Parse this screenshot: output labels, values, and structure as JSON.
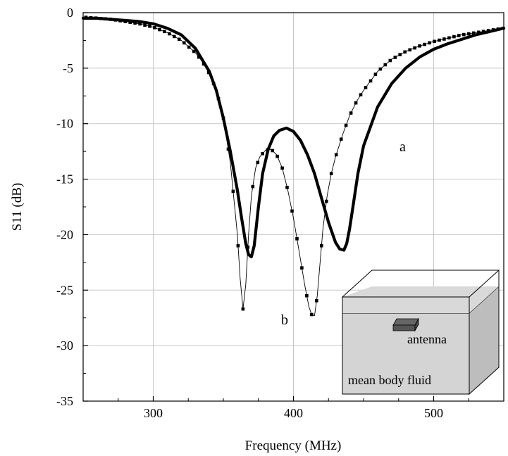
{
  "chart_data": {
    "type": "line",
    "xlabel": "Frequency (MHz)",
    "ylabel": "S11 (dB)",
    "xlim": [
      250,
      550
    ],
    "ylim": [
      -35,
      0
    ],
    "x_ticks": [
      300,
      400,
      500
    ],
    "y_ticks": [
      0,
      -5,
      -10,
      -15,
      -20,
      -25,
      -30,
      -35
    ],
    "grid": true,
    "series": [
      {
        "name": "a",
        "style": "thick-line",
        "color": "#000000",
        "x": [
          250,
          260,
          270,
          280,
          290,
          300,
          310,
          320,
          330,
          340,
          345,
          350,
          355,
          360,
          363,
          366,
          368,
          370,
          372,
          375,
          378,
          382,
          386,
          390,
          395,
          400,
          405,
          410,
          415,
          420,
          425,
          430,
          433,
          436,
          438,
          440,
          443,
          446,
          450,
          460,
          470,
          480,
          490,
          500,
          510,
          520,
          530,
          540,
          550
        ],
        "y": [
          -0.5,
          -0.5,
          -0.6,
          -0.7,
          -0.8,
          -1.0,
          -1.4,
          -2.0,
          -3.2,
          -5.3,
          -7.0,
          -9.5,
          -12.5,
          -16.0,
          -18.5,
          -20.8,
          -21.8,
          -22.0,
          -21.0,
          -17.5,
          -14.5,
          -12.3,
          -11.1,
          -10.6,
          -10.4,
          -10.7,
          -11.5,
          -12.8,
          -14.5,
          -16.7,
          -18.9,
          -20.7,
          -21.3,
          -21.4,
          -20.8,
          -19.5,
          -17.0,
          -14.5,
          -12.0,
          -8.5,
          -6.4,
          -5.0,
          -4.0,
          -3.3,
          -2.8,
          -2.4,
          -2.0,
          -1.7,
          -1.4
        ]
      },
      {
        "name": "b",
        "style": "thin-line-square-markers",
        "color": "#000000",
        "x": [
          250,
          260,
          270,
          280,
          290,
          300,
          310,
          320,
          330,
          335,
          340,
          345,
          350,
          355,
          360,
          362,
          364,
          366,
          368,
          370,
          373,
          376,
          380,
          384,
          388,
          392,
          396,
          400,
          404,
          408,
          411,
          413,
          415,
          417,
          419,
          421,
          424,
          427,
          430,
          435,
          440,
          445,
          450,
          460,
          470,
          480,
          490,
          500,
          510,
          520,
          530,
          540,
          550
        ],
        "y": [
          -0.4,
          -0.5,
          -0.6,
          -0.8,
          -1.0,
          -1.3,
          -1.8,
          -2.5,
          -3.6,
          -4.4,
          -5.5,
          -7.0,
          -9.5,
          -13.5,
          -20.0,
          -24.0,
          -26.7,
          -24.5,
          -20.0,
          -16.5,
          -14.0,
          -13.0,
          -12.4,
          -12.3,
          -12.8,
          -14.0,
          -16.0,
          -18.5,
          -21.5,
          -24.5,
          -26.5,
          -27.2,
          -27.3,
          -25.5,
          -22.5,
          -19.5,
          -16.5,
          -14.5,
          -13.0,
          -11.0,
          -9.3,
          -8.0,
          -7.0,
          -5.3,
          -4.2,
          -3.5,
          -3.0,
          -2.6,
          -2.3,
          -2.0,
          -1.8,
          -1.6,
          -1.4
        ]
      }
    ],
    "annotations": [
      "a",
      "b"
    ]
  },
  "inset": {
    "labels": [
      "antenna",
      "mean body fluid"
    ],
    "colors": {
      "fluid": "#d4d4d4",
      "fluid_side": "#bdbdbd",
      "antenna": "#777777"
    }
  }
}
